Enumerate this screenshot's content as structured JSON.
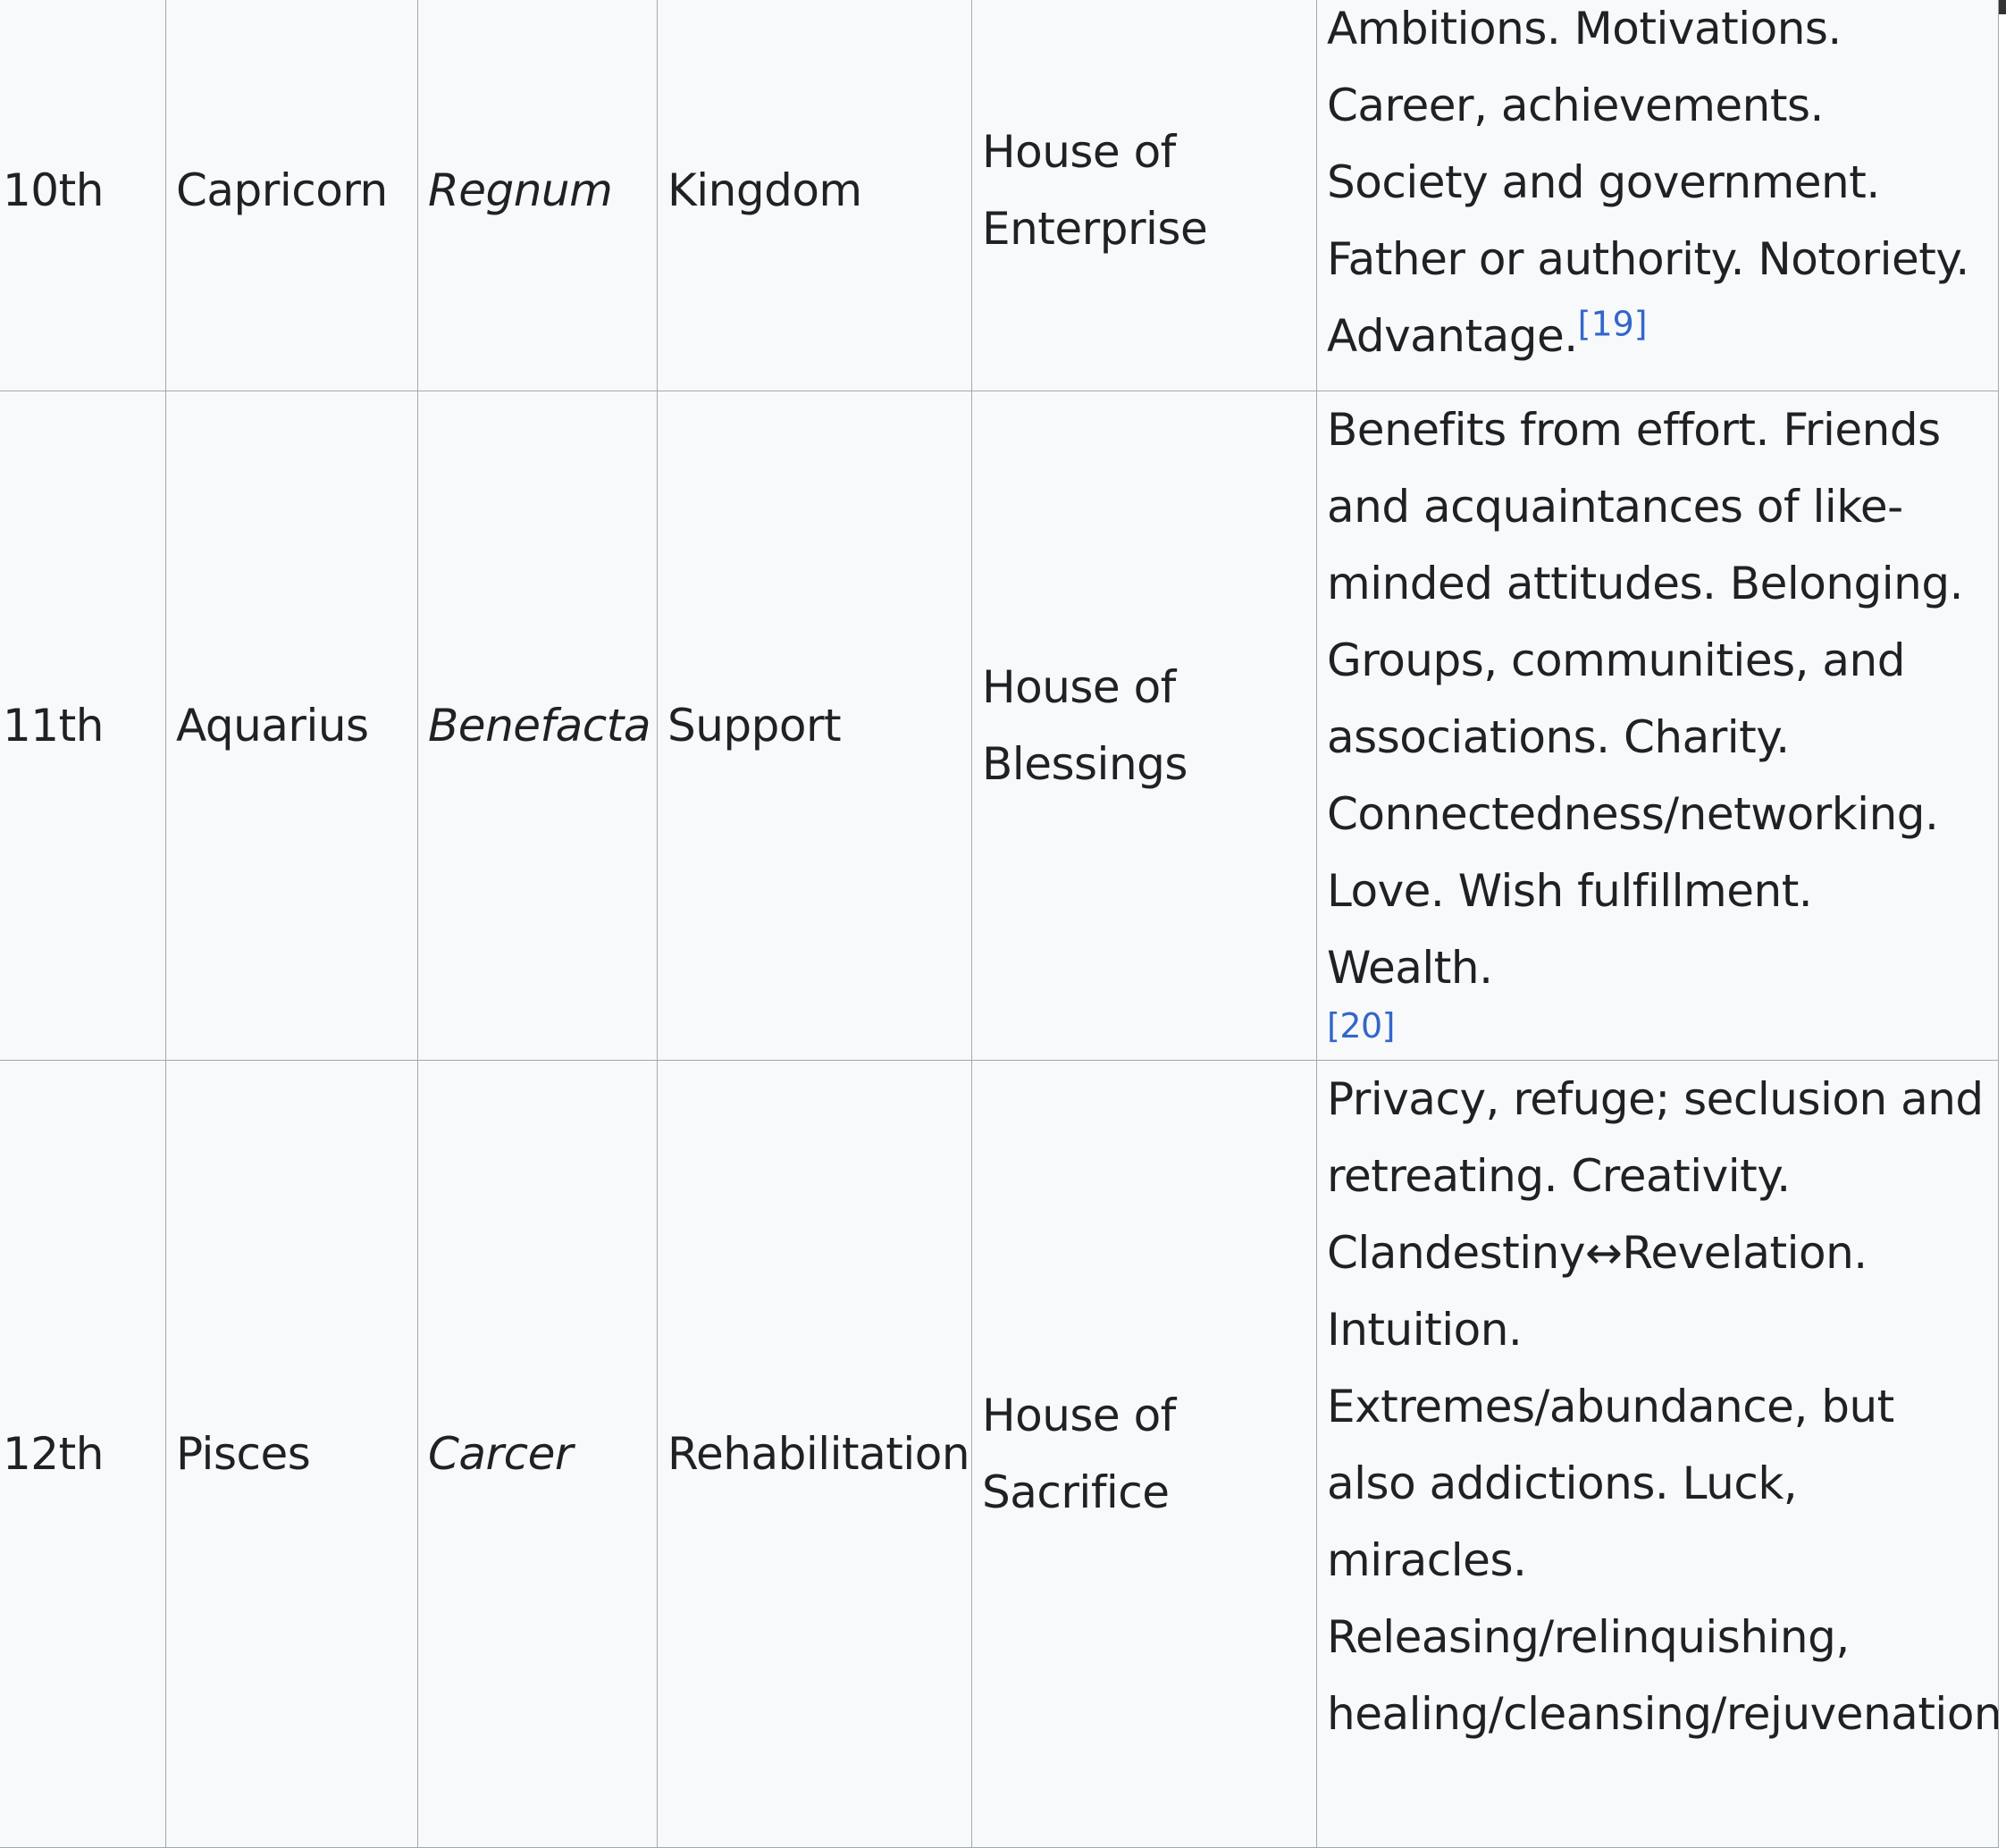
{
  "rows": [
    {
      "house": "10th",
      "sign": "Capricorn",
      "latin": "Regnum",
      "translation": "Kingdom",
      "modern_title": "House of Enterprise",
      "description": "Ambitions. Motivations. Career, achievements. Society and government. Father or authority. Notoriety. Advantage.",
      "ref": "[19]"
    },
    {
      "house": "11th",
      "sign": "Aquarius",
      "latin": "Benefacta",
      "translation": "Support",
      "modern_title": "House of Blessings",
      "description": "Benefits from effort. Friends and acquaintances of like-minded attitudes. Belonging. Groups, communities, and associations. Charity. Connectedness/networking. Love. Wish fulfillment. Wealth.",
      "ref": "[20]"
    },
    {
      "house": "12th",
      "sign": "Pisces",
      "latin": "Carcer",
      "translation": "Rehabilitation",
      "modern_title": "House of Sacrifice",
      "description": "Privacy, refuge; seclusion and retreating. Creativity. Clandestiny↔Revelation. Intuition. Extremes/abundance, but also addictions. Luck, miracles. Releasing/relinquishing, healing/cleansing/rejuvenation"
    }
  ]
}
